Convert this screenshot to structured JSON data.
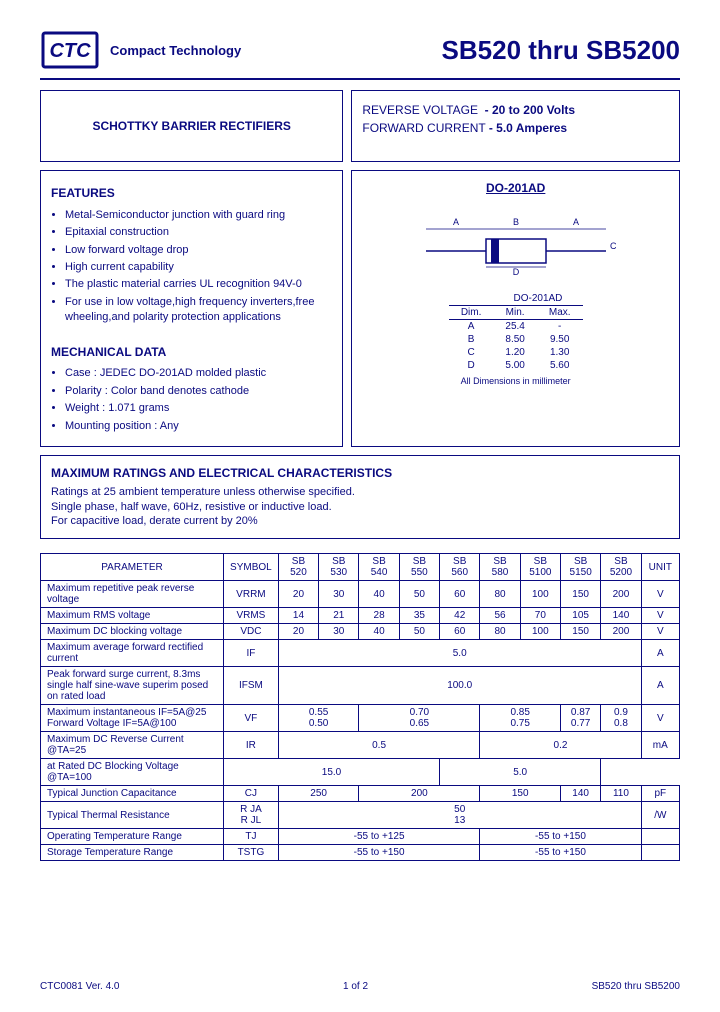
{
  "company": "Compact Technology",
  "title": "SB520 thru SB5200",
  "product_type": "SCHOTTKY BARRIER RECTIFIERS",
  "specs": {
    "rv_label": "REVERSE VOLTAGE",
    "rv_value": "- 20 to 200 Volts",
    "fc_label": "FORWARD CURRENT",
    "fc_value": "- 5.0 Amperes"
  },
  "features_heading": "FEATURES",
  "features": [
    "Metal-Semiconductor junction with guard ring",
    "Epitaxial construction",
    "Low forward voltage drop",
    "High current capability",
    "The plastic material carries UL recognition 94V-0",
    "For use in low voltage,high frequency inverters,free wheeling,and polarity protection applications"
  ],
  "mech_heading": "MECHANICAL DATA",
  "mechanical": [
    "Case : JEDEC DO-201AD molded plastic",
    "Polarity : Color band denotes cathode",
    "Weight : 1.071 grams",
    "Mounting position : Any"
  ],
  "package_name": "DO-201AD",
  "dim_header": [
    "Dim.",
    "Min.",
    "Max."
  ],
  "dims": [
    [
      "A",
      "25.4",
      "-"
    ],
    [
      "B",
      "8.50",
      "9.50"
    ],
    [
      "C",
      "1.20",
      "1.30"
    ],
    [
      "D",
      "5.00",
      "5.60"
    ]
  ],
  "dim_note": "All Dimensions in millimeter",
  "max_heading": "MAXIMUM RATINGS AND ELECTRICAL CHARACTERISTICS",
  "max_notes": [
    "Ratings at 25    ambient temperature unless otherwise specified.",
    "Single phase, half wave, 60Hz, resistive or inductive load.",
    "For capacitive load, derate current by 20%"
  ],
  "parts": [
    "SB 520",
    "SB 530",
    "SB 540",
    "SB 550",
    "SB 560",
    "SB 580",
    "SB 5100",
    "SB 5150",
    "SB 5200"
  ],
  "table_headers": [
    "PARAMETER",
    "SYMBOL",
    "",
    "",
    "",
    "",
    "",
    "",
    "",
    "",
    "",
    "UNIT"
  ],
  "rows": [
    {
      "p": "Maximum repetitive peak reverse voltage",
      "s": "VRRM",
      "v": [
        "20",
        "30",
        "40",
        "50",
        "60",
        "80",
        "100",
        "150",
        "200"
      ],
      "u": "V"
    },
    {
      "p": "Maximum RMS voltage",
      "s": "VRMS",
      "v": [
        "14",
        "21",
        "28",
        "35",
        "42",
        "56",
        "70",
        "105",
        "140"
      ],
      "u": "V"
    },
    {
      "p": "Maximum DC blocking voltage",
      "s": "VDC",
      "v": [
        "20",
        "30",
        "40",
        "50",
        "60",
        "80",
        "100",
        "150",
        "200"
      ],
      "u": "V"
    },
    {
      "p": "Maximum average forward rectified current",
      "s": "IF",
      "span": "5.0",
      "u": "A"
    },
    {
      "p": "Peak forward surge current, 8.3ms single half sine-wave superim posed on rated load",
      "s": "IFSM",
      "span": "100.0",
      "u": "A"
    },
    {
      "p": "Maximum instantaneous IF=5A@25\nForward Voltage  IF=5A@100",
      "s": "VF",
      "groups": [
        {
          "c": 2,
          "v": "0.55<br>0.50"
        },
        {
          "c": 3,
          "v": "0.70<br>0.65"
        },
        {
          "c": 2,
          "v": "0.85<br>0.75"
        },
        {
          "c": 1,
          "v": "0.87<br>0.77"
        },
        {
          "c": 1,
          "v": "0.9<br>0.8"
        }
      ],
      "u": "V"
    },
    {
      "p": "Maximum DC Reverse Current @TA=25",
      "s": "IR",
      "rowspan": 2,
      "groups": [
        {
          "c": 5,
          "v": "0.5"
        },
        {
          "c": 4,
          "v": "0.2"
        }
      ],
      "u": "mA",
      "urowspan": 2
    },
    {
      "p": "at Rated DC Blocking Voltage @TA=100",
      "groups": [
        {
          "c": 5,
          "v": "15.0"
        },
        {
          "c": 4,
          "v": "5.0"
        }
      ]
    },
    {
      "p": "Typical Junction Capacitance",
      "s": "CJ",
      "groups": [
        {
          "c": 2,
          "v": "250"
        },
        {
          "c": 3,
          "v": "200"
        },
        {
          "c": 2,
          "v": "150"
        },
        {
          "c": 1,
          "v": "140"
        },
        {
          "c": 1,
          "v": "110"
        }
      ],
      "u": "pF"
    },
    {
      "p": "Typical Thermal Resistance",
      "s": "R JA<br>R JL",
      "span": "50<br>13",
      "u": "/W"
    },
    {
      "p": "Operating Temperature Range",
      "s": "TJ",
      "groups": [
        {
          "c": 5,
          "v": "-55 to +125"
        },
        {
          "c": 4,
          "v": "-55 to +150"
        }
      ],
      "u": ""
    },
    {
      "p": "Storage Temperature Range",
      "s": "TSTG",
      "groups": [
        {
          "c": 5,
          "v": "-55 to +150"
        },
        {
          "c": 4,
          "v": "-55 to +150"
        }
      ],
      "u": ""
    }
  ],
  "footer": {
    "left": "CTC0081 Ver. 4.0",
    "center": "1 of 2",
    "right": "SB520 thru SB5200"
  },
  "colors": {
    "primary": "#0a0a80",
    "bg": "#ffffff"
  }
}
